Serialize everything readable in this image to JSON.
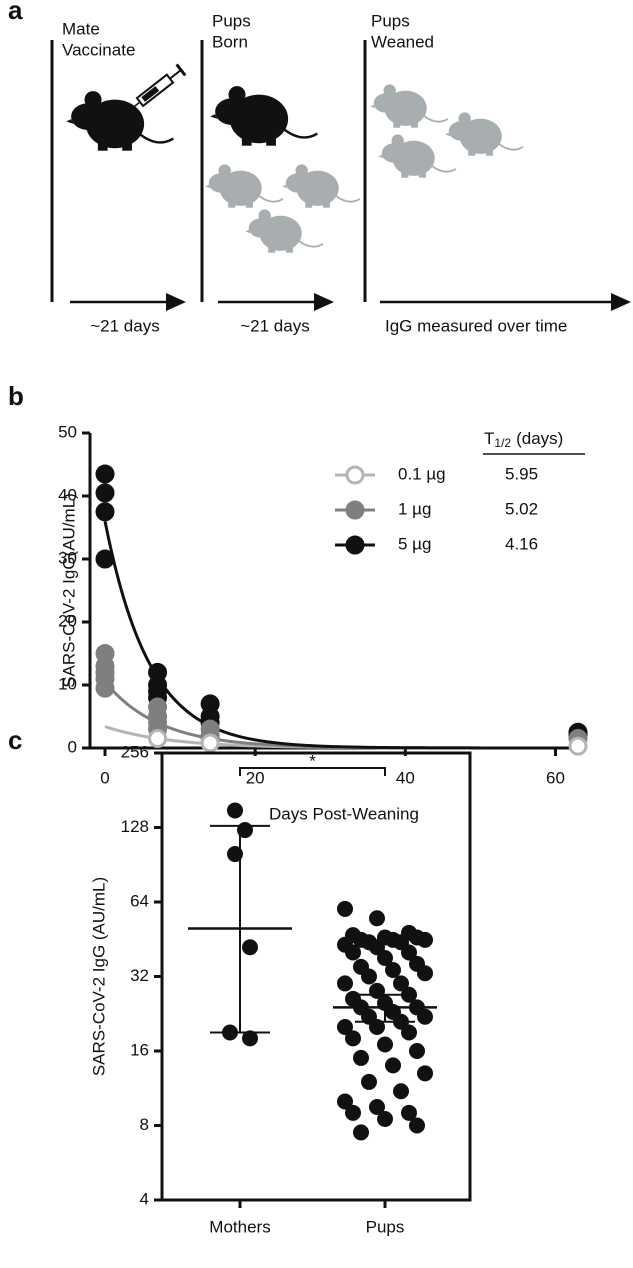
{
  "panel_a": {
    "label": "a",
    "stages": [
      {
        "title_lines": [
          "Mate",
          "Vaccinate"
        ],
        "duration": "~21 days"
      },
      {
        "title_lines": [
          "Pups",
          "Born"
        ],
        "duration": "~21 days"
      },
      {
        "title_lines": [
          "Pups",
          "Weaned"
        ],
        "duration": "IgG measured over time"
      }
    ]
  },
  "chart_data": [
    {
      "type": "line",
      "panel_label": "b",
      "x_label": "Days Post-Weaning",
      "y_label": "SARS-CoV-2 IgG(AU/mL)",
      "xlim": [
        -2,
        63
      ],
      "xticks": [
        0,
        20,
        40,
        60
      ],
      "ylim": [
        0,
        50
      ],
      "yticks": [
        0,
        10,
        20,
        30,
        40,
        50
      ],
      "fit_xlim": [
        0,
        50
      ],
      "legend_header": {
        "symbol": "T",
        "subscript": "1/2",
        "unit": "(days)"
      },
      "legend": "upper right",
      "series": [
        {
          "name": "0.1 µg",
          "color": "#b4b4b4",
          "open": true,
          "half_life": 5.95,
          "fit_start": 3.4,
          "x": [
            7,
            14,
            63
          ],
          "values": [
            1.5,
            0.8,
            0.3
          ]
        },
        {
          "name": "1 µg",
          "color": "#7f7f7f",
          "open": false,
          "half_life": 5.02,
          "fit_start": 10.5,
          "x": [
            0,
            0,
            0,
            0,
            0,
            7,
            7,
            7,
            7,
            14,
            14,
            14,
            63
          ],
          "values": [
            15,
            13,
            12,
            11,
            9.5,
            6.5,
            5,
            4,
            3,
            3,
            2,
            1.5,
            1.5
          ]
        },
        {
          "name": "5 µg",
          "color": "#111111",
          "open": false,
          "half_life": 4.16,
          "fit_start": 36,
          "x": [
            0,
            0,
            0,
            0,
            7,
            7,
            7,
            7,
            14,
            14,
            14,
            63,
            63
          ],
          "values": [
            43.5,
            40.5,
            37.5,
            30,
            12,
            10,
            9,
            8,
            7,
            5,
            4,
            2.5,
            2
          ]
        }
      ]
    },
    {
      "type": "scatter",
      "panel_label": "c",
      "y_label": "SARS-CoV-2 IgG (AU/mL)",
      "log_base": 2,
      "ylim": [
        4,
        256
      ],
      "yticks": [
        4,
        8,
        16,
        32,
        64,
        128,
        256
      ],
      "categories": [
        "Mothers",
        "Pups"
      ],
      "color": "#111111",
      "values": [
        [
          150,
          125,
          100,
          42,
          19,
          18
        ],
        [
          60,
          55,
          48,
          47,
          46,
          46,
          45,
          45,
          45,
          44,
          44,
          43,
          42,
          40,
          40,
          38,
          36,
          35,
          34,
          33,
          32,
          30,
          30,
          28,
          27,
          26,
          25,
          24,
          24,
          23,
          22,
          22,
          21,
          20,
          20,
          19,
          18,
          17,
          16,
          15,
          14,
          13,
          12,
          11,
          10,
          9.5,
          9,
          9,
          8.5,
          8,
          7.5
        ]
      ],
      "means": [
        50,
        24
      ],
      "error_low": [
        19,
        21
      ],
      "error_high": [
        130,
        27
      ],
      "significance": "*"
    }
  ]
}
